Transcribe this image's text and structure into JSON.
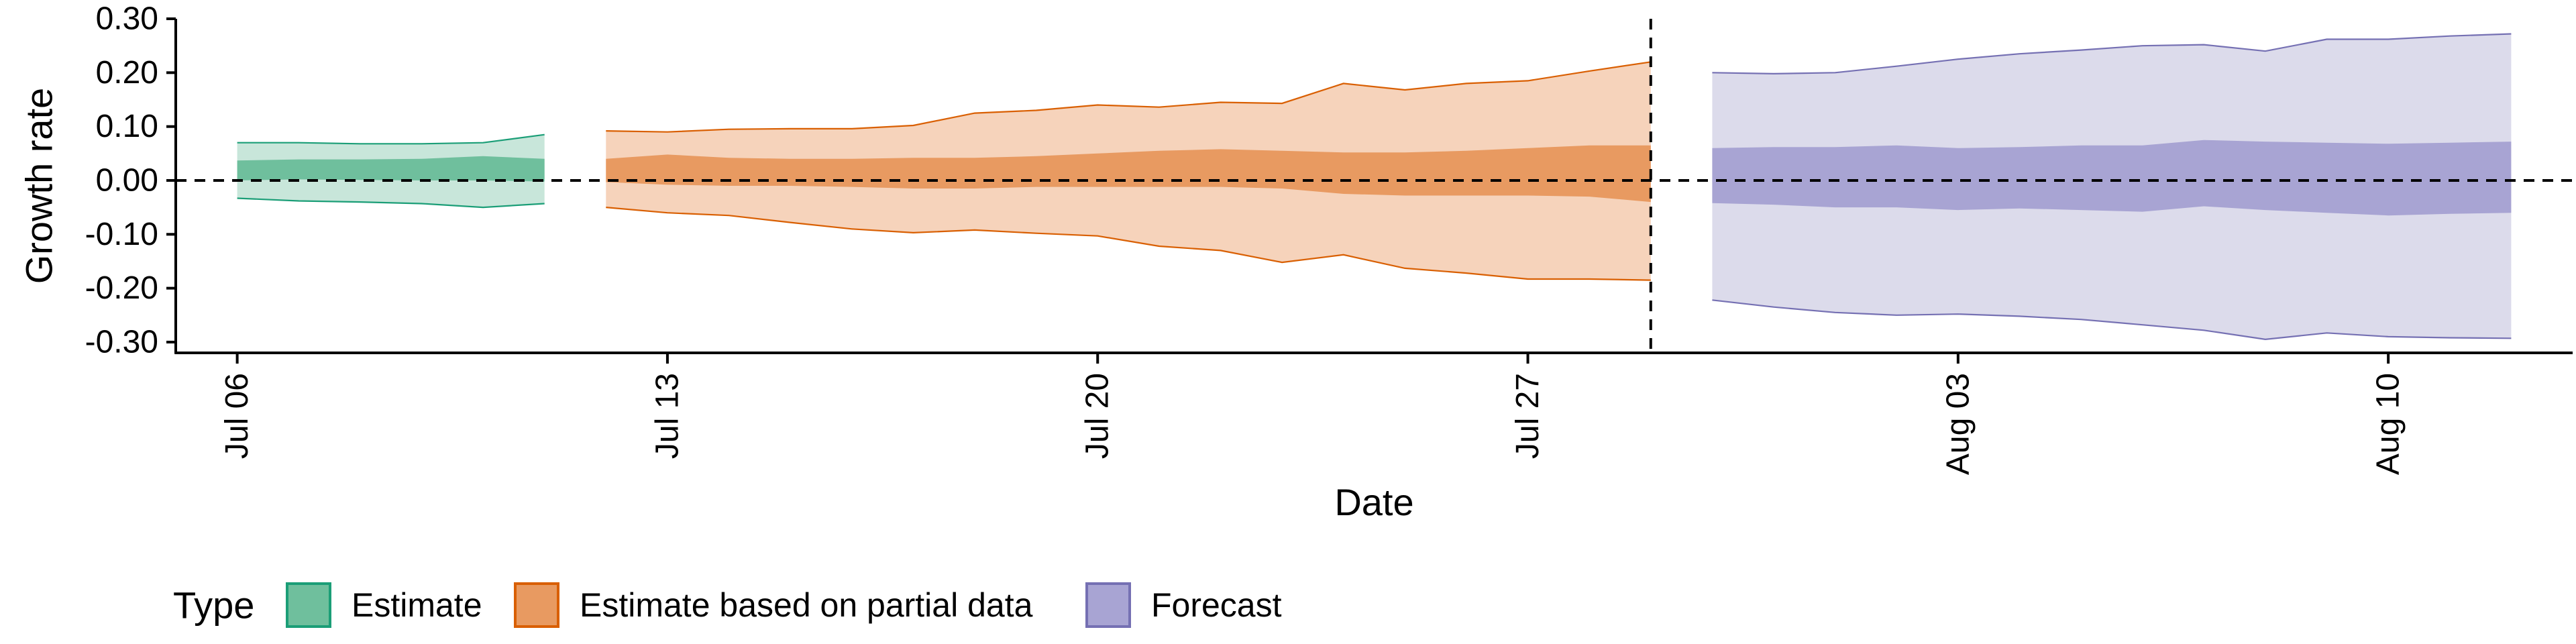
{
  "chart_data": {
    "type": "area",
    "xlabel": "Date",
    "ylabel": "Growth rate",
    "x_axis": {
      "type": "date",
      "range": [
        "2020-07-05",
        "2020-08-13"
      ],
      "ticks": [
        {
          "date": "2020-07-06",
          "label": "Jul 06"
        },
        {
          "date": "2020-07-13",
          "label": "Jul 13"
        },
        {
          "date": "2020-07-20",
          "label": "Jul 20"
        },
        {
          "date": "2020-07-27",
          "label": "Jul 27"
        },
        {
          "date": "2020-08-03",
          "label": "Aug 03"
        },
        {
          "date": "2020-08-10",
          "label": "Aug 10"
        }
      ]
    },
    "y_axis": {
      "range": [
        -0.32,
        0.3
      ],
      "ticks": [
        0.3,
        0.2,
        0.1,
        0.0,
        -0.1,
        -0.2,
        -0.3
      ],
      "tick_labels": [
        "0.30",
        "0.20",
        "0.10",
        "0.00",
        "-0.10",
        "-0.20",
        "-0.30"
      ]
    },
    "reference_lines": {
      "horizontal_y": 0.0,
      "vertical_date": "2020-07-29"
    },
    "grid": false,
    "legend": {
      "title": "Type",
      "position": "bottom-left",
      "items": [
        "Estimate",
        "Estimate based on partial data",
        "Forecast"
      ]
    },
    "series": [
      {
        "name": "Estimate",
        "outer_color": "#c8e6da",
        "inner_color": "#6fbf9d",
        "line_color": "#1b9e77",
        "dates": [
          "2020-07-06",
          "2020-07-07",
          "2020-07-08",
          "2020-07-09",
          "2020-07-10",
          "2020-07-11"
        ],
        "outer_upper": [
          0.07,
          0.07,
          0.068,
          0.068,
          0.07,
          0.085
        ],
        "outer_lower": [
          -0.033,
          -0.038,
          -0.04,
          -0.043,
          -0.05,
          -0.043
        ],
        "inner_upper": [
          0.037,
          0.039,
          0.039,
          0.04,
          0.045,
          0.04
        ],
        "inner_lower": [
          0.0,
          0.002,
          0.001,
          0.0,
          0.0,
          -0.002
        ]
      },
      {
        "name": "Estimate based on partial data",
        "outer_color": "#f6d3bb",
        "inner_color": "#e89a61",
        "line_color": "#d95f02",
        "dates": [
          "2020-07-12",
          "2020-07-13",
          "2020-07-14",
          "2020-07-15",
          "2020-07-16",
          "2020-07-17",
          "2020-07-18",
          "2020-07-19",
          "2020-07-20",
          "2020-07-21",
          "2020-07-22",
          "2020-07-23",
          "2020-07-24",
          "2020-07-25",
          "2020-07-26",
          "2020-07-27",
          "2020-07-28",
          "2020-07-29"
        ],
        "outer_upper": [
          0.092,
          0.09,
          0.095,
          0.096,
          0.096,
          0.102,
          0.125,
          0.13,
          0.14,
          0.136,
          0.145,
          0.143,
          0.18,
          0.168,
          0.18,
          0.185,
          0.203,
          0.22
        ],
        "outer_lower": [
          -0.05,
          -0.06,
          -0.065,
          -0.078,
          -0.09,
          -0.097,
          -0.092,
          -0.098,
          -0.103,
          -0.122,
          -0.13,
          -0.152,
          -0.138,
          -0.163,
          -0.172,
          -0.183,
          -0.183,
          -0.185
        ],
        "inner_upper": [
          0.04,
          0.048,
          0.042,
          0.04,
          0.04,
          0.042,
          0.042,
          0.045,
          0.05,
          0.055,
          0.058,
          0.055,
          0.052,
          0.052,
          0.055,
          0.06,
          0.065,
          0.065
        ],
        "inner_lower": [
          -0.003,
          -0.008,
          -0.01,
          -0.01,
          -0.012,
          -0.015,
          -0.015,
          -0.012,
          -0.012,
          -0.012,
          -0.012,
          -0.015,
          -0.025,
          -0.028,
          -0.028,
          -0.028,
          -0.03,
          -0.04
        ]
      },
      {
        "name": "Forecast",
        "outer_color": "#dcdbeb",
        "inner_color": "#a8a4d3",
        "line_color": "#7570b3",
        "dates": [
          "2020-07-30",
          "2020-07-31",
          "2020-08-01",
          "2020-08-02",
          "2020-08-03",
          "2020-08-04",
          "2020-08-05",
          "2020-08-06",
          "2020-08-07",
          "2020-08-08",
          "2020-08-09",
          "2020-08-10",
          "2020-08-11",
          "2020-08-12"
        ],
        "outer_upper": [
          0.2,
          0.198,
          0.2,
          0.212,
          0.225,
          0.235,
          0.242,
          0.25,
          0.252,
          0.24,
          0.262,
          0.262,
          0.268,
          0.272
        ],
        "outer_lower": [
          -0.222,
          -0.235,
          -0.245,
          -0.25,
          -0.248,
          -0.252,
          -0.258,
          -0.268,
          -0.278,
          -0.295,
          -0.283,
          -0.29,
          -0.292,
          -0.293
        ],
        "inner_upper": [
          0.06,
          0.062,
          0.062,
          0.065,
          0.06,
          0.062,
          0.065,
          0.065,
          0.075,
          0.072,
          0.07,
          0.068,
          0.07,
          0.072
        ],
        "inner_lower": [
          -0.042,
          -0.045,
          -0.05,
          -0.05,
          -0.055,
          -0.052,
          -0.055,
          -0.058,
          -0.048,
          -0.055,
          -0.06,
          -0.065,
          -0.062,
          -0.06
        ]
      }
    ]
  }
}
